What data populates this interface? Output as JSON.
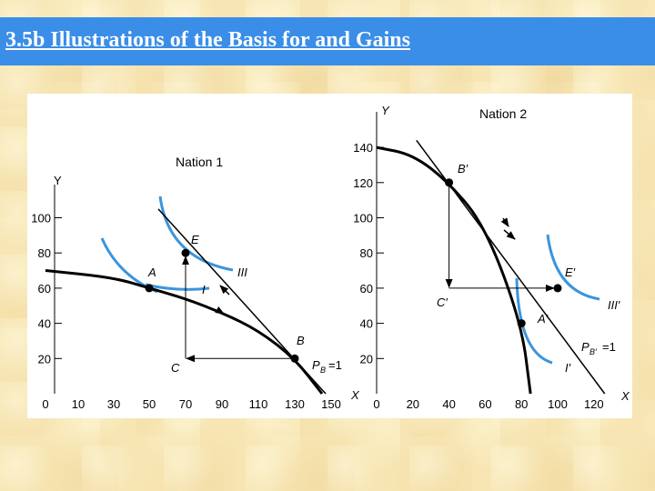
{
  "slide": {
    "title": "3.5b Illustrations of the Basis for and Gains"
  },
  "chart_data": [
    {
      "type": "line",
      "title": "Nation 1",
      "xlabel": "X",
      "ylabel": "Y",
      "x_ticks": [
        "0",
        "10",
        "30",
        "50",
        "70",
        "90",
        "110",
        "130",
        "150"
      ],
      "y_ticks": [
        "20",
        "40",
        "60",
        "80",
        "100"
      ],
      "series": [
        {
          "values": [
            [
              0,
              70
            ],
            [
              30,
              66
            ],
            [
              50,
              60
            ],
            [
              70,
              54
            ],
            [
              90,
              46
            ],
            [
              110,
              36
            ],
            [
              130,
              20
            ],
            [
              145,
              0
            ]
          ]
        }
      ],
      "trade_line": [
        [
          55,
          105
        ],
        [
          147,
          0
        ]
      ],
      "points": [
        {
          "label": "A",
          "x": 50,
          "y": 60
        },
        {
          "label": "E",
          "x": 70,
          "y": 80
        },
        {
          "label": "B",
          "x": 130,
          "y": 20
        }
      ],
      "annotations": {
        "indiff_low": "I",
        "indiff_high": "III",
        "corner": "C",
        "price": "P",
        "price_sub": "B",
        "price_eq": "=1"
      }
    },
    {
      "type": "line",
      "title": "Nation 2",
      "xlabel": "X",
      "ylabel": "Y",
      "x_ticks": [
        "0",
        "20",
        "40",
        "60",
        "80",
        "100",
        "120"
      ],
      "y_ticks": [
        "20",
        "40",
        "60",
        "80",
        "100",
        "120",
        "140"
      ],
      "series": [
        {
          "values": [
            [
              0,
              140
            ],
            [
              20,
              136
            ],
            [
              40,
              120
            ],
            [
              60,
              95
            ],
            [
              80,
              40
            ],
            [
              85,
              0
            ]
          ]
        }
      ],
      "trade_line": [
        [
          22,
          144
        ],
        [
          126,
          0
        ]
      ],
      "points": [
        {
          "label": "B′",
          "x": 40,
          "y": 120
        },
        {
          "label": "E′",
          "x": 100,
          "y": 60
        },
        {
          "label": "A′",
          "x": 80,
          "y": 40
        }
      ],
      "annotations": {
        "indiff_low": "I′",
        "indiff_high": "III′",
        "corner": "C′",
        "price": "P",
        "price_sub": "B′",
        "price_eq": "=1"
      }
    }
  ],
  "colors": {
    "title_bar": "#3a8ee8",
    "indifference": "#3b95dd",
    "ink": "#000000"
  }
}
